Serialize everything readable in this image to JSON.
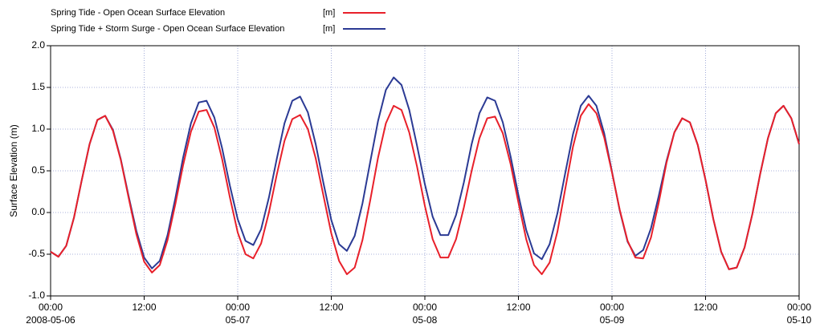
{
  "chart_data": {
    "type": "line",
    "y_label": "Surface Elevation (m)",
    "grid": true,
    "xlim": [
      "2008-05-06 00:00",
      "2008-05-10 00:00"
    ],
    "xticks": [
      {
        "value": "2008-05-06 00:00",
        "label": [
          "00:00",
          "2008-05-06"
        ]
      },
      {
        "value": "2008-05-06 12:00",
        "label": [
          "12:00"
        ]
      },
      {
        "value": "2008-05-07 00:00",
        "label": [
          "00:00",
          "05-07"
        ]
      },
      {
        "value": "2008-05-07 12:00",
        "label": [
          "12:00"
        ]
      },
      {
        "value": "2008-05-08 00:00",
        "label": [
          "00:00",
          "05-08"
        ]
      },
      {
        "value": "2008-05-08 12:00",
        "label": [
          "12:00"
        ]
      },
      {
        "value": "2008-05-09 00:00",
        "label": [
          "00:00",
          "05-09"
        ]
      },
      {
        "value": "2008-05-09 12:00",
        "label": [
          "12:00"
        ]
      },
      {
        "value": "2008-05-10 00:00",
        "label": [
          "00:00",
          "05-10"
        ]
      }
    ],
    "ylim": [
      -1,
      2
    ],
    "yticks": [
      {
        "value": -1,
        "label": "-1.0"
      },
      {
        "value": -0.5,
        "label": "-0.5"
      },
      {
        "value": 0,
        "label": "0.0"
      },
      {
        "value": 0.5,
        "label": "0.5"
      },
      {
        "value": 1,
        "label": "1.0"
      },
      {
        "value": 1.5,
        "label": "1.5"
      },
      {
        "value": 2,
        "label": "2.0"
      }
    ],
    "x": [
      "2008-05-06 00:00",
      "2008-05-06 01:00",
      "2008-05-06 02:00",
      "2008-05-06 03:00",
      "2008-05-06 04:00",
      "2008-05-06 05:00",
      "2008-05-06 06:00",
      "2008-05-06 07:00",
      "2008-05-06 08:00",
      "2008-05-06 09:00",
      "2008-05-06 10:00",
      "2008-05-06 11:00",
      "2008-05-06 12:00",
      "2008-05-06 13:00",
      "2008-05-06 14:00",
      "2008-05-06 15:00",
      "2008-05-06 16:00",
      "2008-05-06 17:00",
      "2008-05-06 18:00",
      "2008-05-06 19:00",
      "2008-05-06 20:00",
      "2008-05-06 21:00",
      "2008-05-06 22:00",
      "2008-05-06 23:00",
      "2008-05-07 00:00",
      "2008-05-07 01:00",
      "2008-05-07 02:00",
      "2008-05-07 03:00",
      "2008-05-07 04:00",
      "2008-05-07 05:00",
      "2008-05-07 06:00",
      "2008-05-07 07:00",
      "2008-05-07 08:00",
      "2008-05-07 09:00",
      "2008-05-07 10:00",
      "2008-05-07 11:00",
      "2008-05-07 12:00",
      "2008-05-07 13:00",
      "2008-05-07 14:00",
      "2008-05-07 15:00",
      "2008-05-07 16:00",
      "2008-05-07 17:00",
      "2008-05-07 18:00",
      "2008-05-07 19:00",
      "2008-05-07 20:00",
      "2008-05-07 21:00",
      "2008-05-07 22:00",
      "2008-05-07 23:00",
      "2008-05-08 00:00",
      "2008-05-08 01:00",
      "2008-05-08 02:00",
      "2008-05-08 03:00",
      "2008-05-08 04:00",
      "2008-05-08 05:00",
      "2008-05-08 06:00",
      "2008-05-08 07:00",
      "2008-05-08 08:00",
      "2008-05-08 09:00",
      "2008-05-08 10:00",
      "2008-05-08 11:00",
      "2008-05-08 12:00",
      "2008-05-08 13:00",
      "2008-05-08 14:00",
      "2008-05-08 15:00",
      "2008-05-08 16:00",
      "2008-05-08 17:00",
      "2008-05-08 18:00",
      "2008-05-08 19:00",
      "2008-05-08 20:00",
      "2008-05-08 21:00",
      "2008-05-08 22:00",
      "2008-05-08 23:00",
      "2008-05-09 00:00",
      "2008-05-09 01:00",
      "2008-05-09 02:00",
      "2008-05-09 03:00",
      "2008-05-09 04:00",
      "2008-05-09 05:00",
      "2008-05-09 06:00",
      "2008-05-09 07:00",
      "2008-05-09 08:00",
      "2008-05-09 09:00",
      "2008-05-09 10:00",
      "2008-05-09 11:00",
      "2008-05-09 12:00",
      "2008-05-09 13:00",
      "2008-05-09 14:00",
      "2008-05-09 15:00",
      "2008-05-09 16:00",
      "2008-05-09 17:00",
      "2008-05-09 18:00",
      "2008-05-09 19:00",
      "2008-05-09 20:00",
      "2008-05-09 21:00",
      "2008-05-09 22:00",
      "2008-05-09 23:00",
      "2008-05-10 00:00"
    ],
    "series": [
      {
        "name": "Spring Tide - Open Ocean Surface Elevation",
        "unit": "[m]",
        "color": "#e8202a",
        "values": [
          -0.47,
          -0.53,
          -0.4,
          -0.06,
          0.39,
          0.82,
          1.11,
          1.16,
          0.98,
          0.63,
          0.18,
          -0.26,
          -0.59,
          -0.72,
          -0.63,
          -0.33,
          0.1,
          0.57,
          0.97,
          1.21,
          1.23,
          1.02,
          0.64,
          0.18,
          -0.24,
          -0.5,
          -0.55,
          -0.37,
          0.0,
          0.45,
          0.86,
          1.12,
          1.17,
          1.0,
          0.65,
          0.2,
          -0.25,
          -0.58,
          -0.74,
          -0.66,
          -0.33,
          0.15,
          0.66,
          1.07,
          1.28,
          1.23,
          0.96,
          0.55,
          0.08,
          -0.32,
          -0.54,
          -0.54,
          -0.32,
          0.06,
          0.5,
          0.89,
          1.13,
          1.15,
          0.95,
          0.58,
          0.12,
          -0.32,
          -0.63,
          -0.74,
          -0.6,
          -0.23,
          0.28,
          0.79,
          1.16,
          1.3,
          1.19,
          0.9,
          0.48,
          0.03,
          -0.34,
          -0.54,
          -0.55,
          -0.3,
          0.12,
          0.6,
          0.96,
          1.13,
          1.08,
          0.81,
          0.39,
          -0.08,
          -0.47,
          -0.68,
          -0.66,
          -0.42,
          -0.02,
          0.46,
          0.89,
          1.19,
          1.28,
          1.13,
          0.82
        ]
      },
      {
        "name": "Spring Tide + Storm Surge - Open Ocean Surface Elevation",
        "unit": "[m]",
        "color": "#2b3a94",
        "values": [
          -0.47,
          -0.53,
          -0.4,
          -0.06,
          0.39,
          0.82,
          1.11,
          1.16,
          0.99,
          0.64,
          0.2,
          -0.22,
          -0.54,
          -0.67,
          -0.58,
          -0.27,
          0.17,
          0.66,
          1.07,
          1.32,
          1.34,
          1.14,
          0.77,
          0.32,
          -0.08,
          -0.34,
          -0.39,
          -0.2,
          0.18,
          0.64,
          1.07,
          1.34,
          1.39,
          1.2,
          0.82,
          0.35,
          -0.09,
          -0.38,
          -0.46,
          -0.28,
          0.11,
          0.61,
          1.1,
          1.47,
          1.62,
          1.53,
          1.23,
          0.8,
          0.34,
          -0.05,
          -0.27,
          -0.27,
          -0.03,
          0.36,
          0.82,
          1.19,
          1.38,
          1.34,
          1.08,
          0.67,
          0.21,
          -0.21,
          -0.49,
          -0.56,
          -0.38,
          -0.01,
          0.47,
          0.94,
          1.28,
          1.4,
          1.28,
          0.95,
          0.49,
          0.02,
          -0.35,
          -0.52,
          -0.45,
          -0.19,
          0.2,
          0.62,
          0.96,
          1.13,
          1.08,
          0.81,
          0.39,
          -0.08,
          -0.47,
          -0.68,
          -0.66,
          -0.42,
          -0.02,
          0.46,
          0.89,
          1.19,
          1.28,
          1.13,
          0.82
        ]
      }
    ]
  }
}
